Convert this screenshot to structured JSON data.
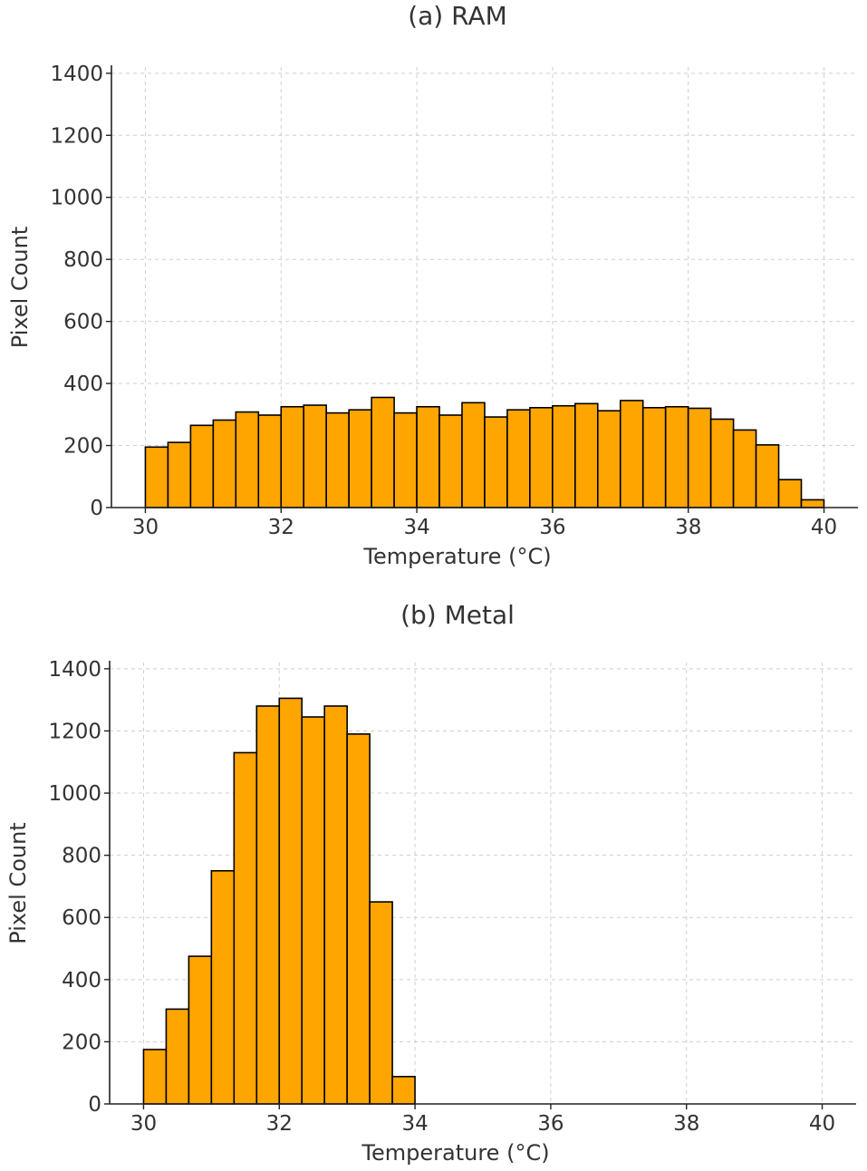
{
  "chart_data": [
    {
      "type": "bar",
      "title": "(a) RAM",
      "xlabel": "Temperature (°C)",
      "ylabel": "Pixel Count",
      "xlim": [
        29.5,
        40.5
      ],
      "ylim": [
        0,
        1420
      ],
      "xticks": [
        30,
        32,
        34,
        36,
        38,
        40
      ],
      "yticks": [
        0,
        200,
        400,
        600,
        800,
        1000,
        1200,
        1400
      ],
      "grid": true,
      "bar_color": "#FFA500",
      "bin_start": 30,
      "bin_width": 0.3333,
      "values": [
        195,
        210,
        265,
        282,
        308,
        298,
        325,
        330,
        305,
        315,
        355,
        305,
        325,
        298,
        338,
        292,
        315,
        322,
        328,
        335,
        312,
        345,
        322,
        325,
        320,
        285,
        250,
        202,
        90,
        25
      ]
    },
    {
      "type": "bar",
      "title": "(b) Metal",
      "xlabel": "Temperature (°C)",
      "ylabel": "Pixel Count",
      "xlim": [
        29.5,
        40.5
      ],
      "ylim": [
        0,
        1420
      ],
      "xticks": [
        30,
        32,
        34,
        36,
        38,
        40
      ],
      "yticks": [
        0,
        200,
        400,
        600,
        800,
        1000,
        1200,
        1400
      ],
      "grid": true,
      "bar_color": "#FFA500",
      "bin_start": 30,
      "bin_width": 0.3333,
      "values": [
        175,
        305,
        475,
        750,
        1130,
        1280,
        1305,
        1245,
        1280,
        1190,
        650,
        88
      ]
    }
  ]
}
